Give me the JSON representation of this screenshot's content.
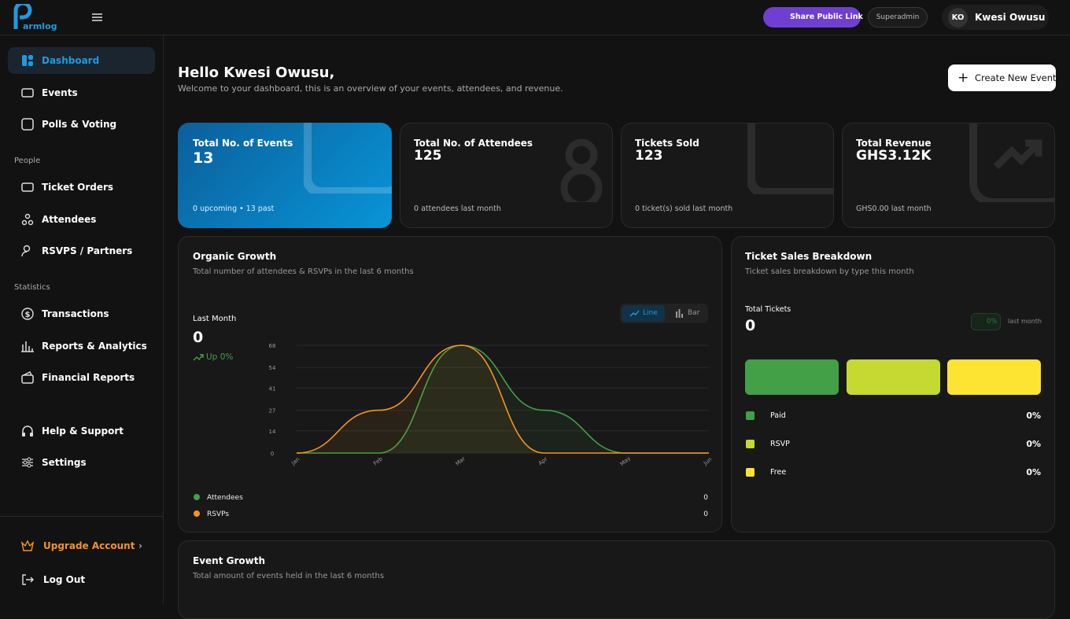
{
  "logo": {
    "text": "armlog"
  },
  "topbar": {
    "share": "Share Public Link",
    "role": "Superadmin",
    "initials": "KO",
    "user": "Kwesi Owusu"
  },
  "sidebar": {
    "main": [
      "Dashboard",
      "Events",
      "Polls & Voting"
    ],
    "sections": [
      {
        "title": "People",
        "items": [
          "Ticket Orders",
          "Attendees",
          "RSVPS / Partners"
        ]
      },
      {
        "title": "Statistics",
        "items": [
          "Transactions",
          "Reports & Analytics",
          "Financial Reports"
        ]
      }
    ],
    "bottom": [
      "Help & Support",
      "Settings"
    ],
    "upgrade": "Upgrade Account",
    "logout": "Log Out"
  },
  "header": {
    "title": "Hello Kwesi Owusu,",
    "subtitle": "Welcome to your dashboard, this is an overview of your events, attendees, and revenue.",
    "button": "Create New Event"
  },
  "stats": [
    {
      "label": "Total No. of Events",
      "value": "13",
      "note": "0 upcoming • 13 past"
    },
    {
      "label": "Total No. of Attendees",
      "value": "125",
      "note": "0 attendees last month"
    },
    {
      "label": "Tickets Sold",
      "value": "123",
      "note": "0 ticket(s) sold last month"
    },
    {
      "label": "Total Revenue",
      "value": "GHS3.12K",
      "note": "GHS0.00 last month"
    }
  ],
  "organic": {
    "title": "Organic Growth",
    "subtitle": "Total number of attendees & RSVPs in the last 6 months",
    "last_month": "Last Month",
    "value": "0",
    "change": "Up 0%",
    "toggle": [
      "Line",
      "Bar"
    ],
    "legend_totals": [
      "0",
      "0"
    ]
  },
  "chart_data": {
    "type": "line",
    "categories": [
      "Jan",
      "Feb",
      "Mar",
      "Apr",
      "May",
      "Jun"
    ],
    "ylim": [
      0,
      68
    ],
    "yticks": [
      0,
      14,
      27,
      41,
      54,
      68
    ],
    "grid": true,
    "series": [
      {
        "name": "Attendees",
        "color": "#43a047",
        "values": [
          0,
          0,
          68,
          27,
          0,
          0
        ]
      },
      {
        "name": "RSVPs",
        "color": "#f7931e",
        "values": [
          0,
          27,
          68,
          0,
          0,
          0
        ]
      }
    ]
  },
  "tickets": {
    "title": "Ticket Sales Breakdown",
    "subtitle": "Ticket sales breakdown by type this month",
    "total_label": "Total Tickets",
    "total": "0",
    "badge": "0%",
    "badge_note": "last month",
    "types": [
      {
        "name": "Paid",
        "color": "#43a047",
        "value": "0%"
      },
      {
        "name": "RSVP",
        "color": "#c6d932",
        "value": "0%"
      },
      {
        "name": "Free",
        "color": "#fde332",
        "value": "0%"
      }
    ]
  },
  "event_growth": {
    "title": "Event Growth",
    "subtitle": "Total amount of events held in the last 6 months"
  }
}
